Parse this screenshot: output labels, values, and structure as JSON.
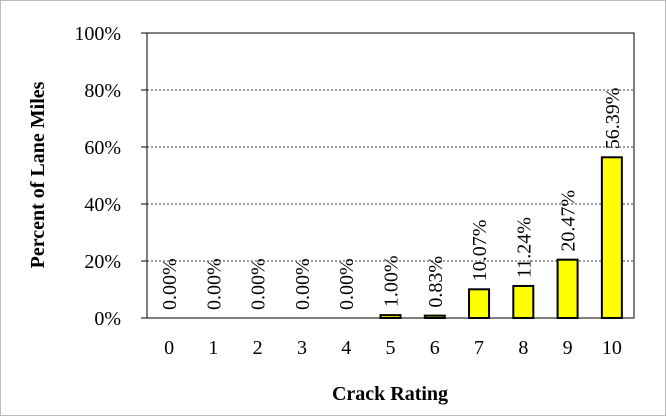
{
  "chart_data": {
    "type": "bar",
    "x_label": "Crack Rating",
    "y_label": "Percent of Lane Miles",
    "categories": [
      "0",
      "1",
      "2",
      "3",
      "4",
      "5",
      "6",
      "7",
      "8",
      "9",
      "10"
    ],
    "values": [
      0,
      0,
      0,
      0,
      0,
      1.0,
      0.83,
      10.07,
      11.24,
      20.47,
      56.39
    ],
    "value_labels": [
      "0.00%",
      "0.00%",
      "0.00%",
      "0.00%",
      "0.00%",
      "1.00%",
      "0.83%",
      "10.07%",
      "11.24%",
      "20.47%",
      "56.39%"
    ],
    "color": "#ffff00",
    "ylim": [
      0,
      100
    ],
    "yticks": [
      {
        "value": 0,
        "label": "0%"
      },
      {
        "value": 20,
        "label": "20%"
      },
      {
        "value": 40,
        "label": "40%"
      },
      {
        "value": 60,
        "label": "60%"
      },
      {
        "value": 80,
        "label": "80%"
      },
      {
        "value": 100,
        "label": "100%"
      }
    ],
    "grid": true
  }
}
